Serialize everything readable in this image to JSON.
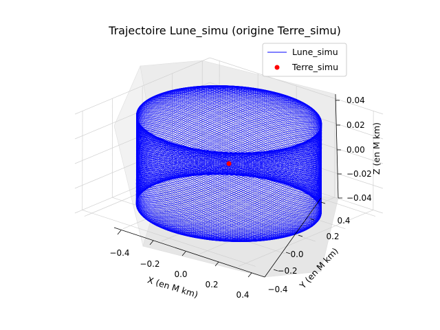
{
  "chart_data": {
    "type": "line",
    "projection": "3d",
    "title": "Trajectoire Lune_simu (origine Terre_simu)",
    "xlabel": "X (en M km)",
    "ylabel": "Y (en M km)",
    "zlabel": "Z (en M km)",
    "xlim": [
      -0.45,
      0.45
    ],
    "ylim": [
      -0.45,
      0.45
    ],
    "zlim": [
      -0.04,
      0.04
    ],
    "x_ticks": [
      "−0.4",
      "−0.2",
      "0.0",
      "0.2",
      "0.4"
    ],
    "y_ticks": [
      "−0.4",
      "−0.2",
      "0.0",
      "0.2",
      "0.4"
    ],
    "z_ticks": [
      "−0.04",
      "−0.02",
      "0.00",
      "0.02",
      "0.04"
    ],
    "grid": true,
    "legend_position": "top-right",
    "series": [
      {
        "name": "Lune_simu",
        "kind": "line",
        "color": "#0000ff",
        "orbit_radius": 0.38,
        "z_amplitude": 0.036,
        "inclination_precession": true
      },
      {
        "name": "Terre_simu",
        "kind": "scatter",
        "color": "#ff0000",
        "x": [
          0
        ],
        "y": [
          0
        ],
        "z": [
          0
        ]
      }
    ]
  }
}
